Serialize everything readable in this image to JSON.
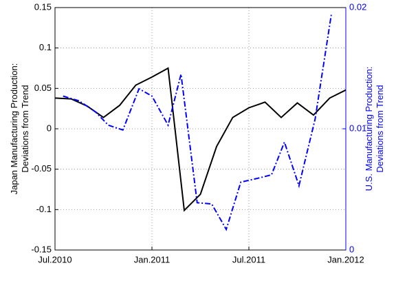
{
  "chart_data": {
    "type": "line",
    "ylabel": [
      "Japan Manufacturing Production:",
      "Deviations from Trend"
    ],
    "y2label": [
      "U.S. Manufacturing Production:",
      "Deviations from Trend"
    ],
    "xlim": [
      0,
      18
    ],
    "xticks": [
      {
        "value": 0,
        "label": "Jul.2010"
      },
      {
        "value": 6,
        "label": "Jan.2011"
      },
      {
        "value": 12,
        "label": "Jul.2011"
      },
      {
        "value": 18,
        "label": "Jan.2012"
      }
    ],
    "ylim": [
      -0.15,
      0.15
    ],
    "yticks": [
      -0.15,
      -0.1,
      -0.05,
      0,
      0.05,
      0.1,
      0.15
    ],
    "y2lim": [
      0,
      0.02
    ],
    "y2ticks": [
      0,
      0.01,
      0.02
    ],
    "y2color": "#0000ff",
    "grid": true,
    "series": [
      {
        "color": "#000000",
        "dash": "solid",
        "axis": "y",
        "x": [
          0,
          1,
          2,
          3,
          4,
          5,
          6,
          7,
          8,
          9,
          10,
          11,
          12,
          13,
          14,
          15,
          16,
          17,
          18
        ],
        "values": [
          0.038,
          0.037,
          0.028,
          0.014,
          0.029,
          0.054,
          0.064,
          0.075,
          -0.101,
          -0.081,
          -0.022,
          0.014,
          0.026,
          0.033,
          0.014,
          0.032,
          0.017,
          0.038,
          0.048
        ]
      },
      {
        "color": "#0000ff",
        "dash": "dashdot",
        "axis": "y2",
        "x": [
          0.5,
          1.5,
          2.5,
          3.3,
          4.2,
          5.2,
          6,
          7,
          7.8,
          8.8,
          9.7,
          10.6,
          11.5,
          12.5,
          13.4,
          14.2,
          15.1,
          16.1,
          17.1
        ],
        "values": [
          0.0127,
          0.0123,
          0.0114,
          0.0103,
          0.0099,
          0.0133,
          0.0127,
          0.0103,
          0.0145,
          0.0039,
          0.0038,
          0.0017,
          0.0056,
          0.0059,
          0.0062,
          0.0089,
          0.0053,
          0.0108,
          0.0194
        ]
      }
    ]
  }
}
